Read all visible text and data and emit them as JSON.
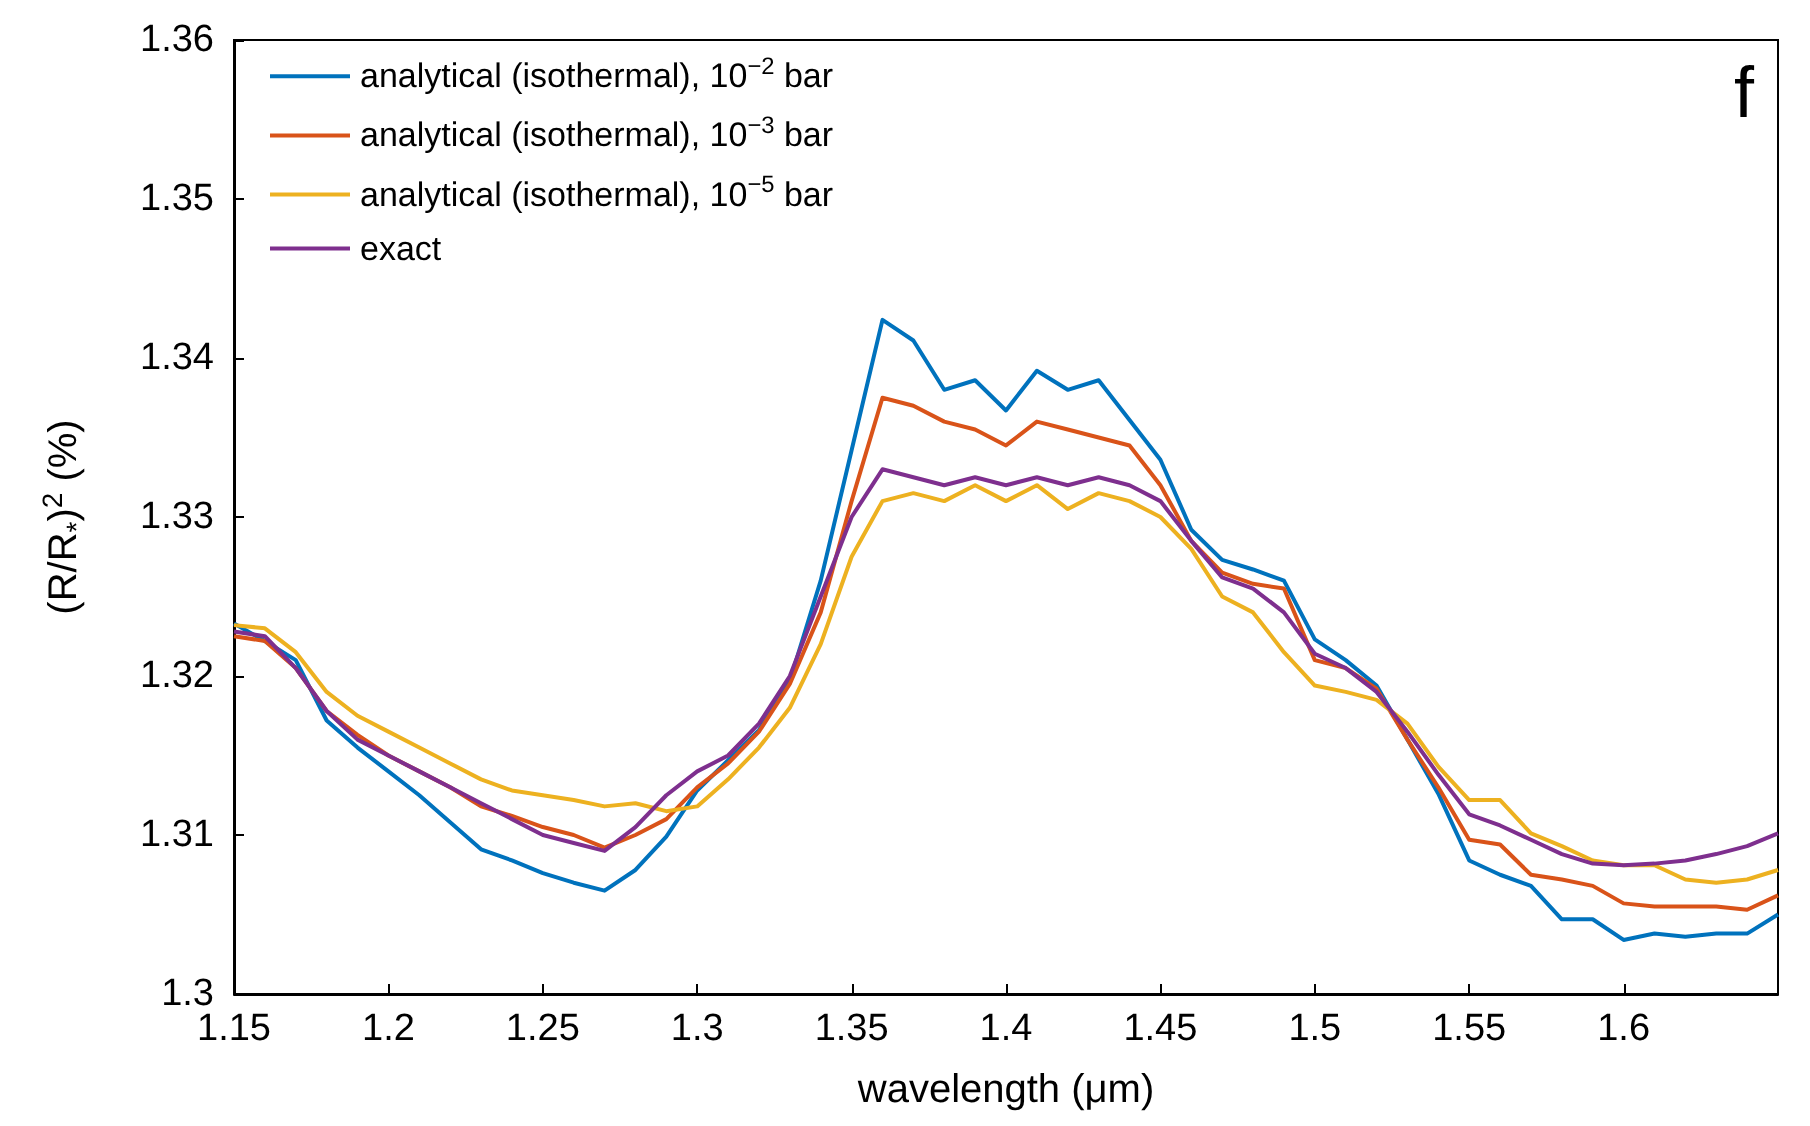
{
  "chart_data": {
    "type": "line",
    "xlabel": "wavelength (μm)",
    "ylabel": "(R/R$_{*}$)$^{2}$ (%)",
    "annotations": [
      "f"
    ],
    "legend": "top left",
    "grid": false,
    "marker": "none",
    "line_style": "solid",
    "x": [
      1.15,
      1.16,
      1.17,
      1.18,
      1.19,
      1.2,
      1.21,
      1.22,
      1.23,
      1.24,
      1.25,
      1.26,
      1.27,
      1.28,
      1.29,
      1.3,
      1.31,
      1.32,
      1.33,
      1.34,
      1.35,
      1.36,
      1.37,
      1.38,
      1.39,
      1.4,
      1.41,
      1.42,
      1.43,
      1.44,
      1.45,
      1.46,
      1.47,
      1.48,
      1.49,
      1.5,
      1.51,
      1.52,
      1.53,
      1.54,
      1.55,
      1.56,
      1.57,
      1.58,
      1.59,
      1.6,
      1.61,
      1.62,
      1.63,
      1.64,
      1.65
    ],
    "xlim": [
      1.15,
      1.65
    ],
    "xticks": [
      1.15,
      1.2,
      1.25,
      1.3,
      1.35,
      1.4,
      1.45,
      1.5,
      1.55,
      1.6
    ],
    "ylim": [
      1.3,
      1.36
    ],
    "yticks": [
      1.3,
      1.31,
      1.32,
      1.33,
      1.34,
      1.35,
      1.36
    ],
    "series": [
      {
        "name": "analytical (isothermal), 10$^{−2}$ bar",
        "color": "#0072bd",
        "values": [
          1.3233,
          1.3222,
          1.321,
          1.3172,
          1.3155,
          1.314,
          1.3125,
          1.3108,
          1.3091,
          1.3084,
          1.3076,
          1.307,
          1.3065,
          1.3078,
          1.3099,
          1.3128,
          1.3147,
          1.3166,
          1.3197,
          1.326,
          1.3342,
          1.3424,
          1.3411,
          1.338,
          1.3386,
          1.3367,
          1.3392,
          1.338,
          1.3386,
          1.3361,
          1.3336,
          1.3292,
          1.3273,
          1.3267,
          1.326,
          1.3223,
          1.321,
          1.3194,
          1.316,
          1.3126,
          1.3084,
          1.3075,
          1.3068,
          1.3047,
          1.3047,
          1.3034,
          1.3038,
          1.3036,
          1.3038,
          1.3038,
          1.305
        ]
      },
      {
        "name": "analytical (isothermal), 10$^{−3}$ bar",
        "color": "#d95319",
        "values": [
          1.3225,
          1.3222,
          1.3205,
          1.3178,
          1.3163,
          1.315,
          1.314,
          1.313,
          1.3118,
          1.3112,
          1.3105,
          1.31,
          1.3092,
          1.31,
          1.311,
          1.313,
          1.3145,
          1.3165,
          1.3195,
          1.324,
          1.331,
          1.3375,
          1.337,
          1.336,
          1.3355,
          1.3345,
          1.336,
          1.3355,
          1.335,
          1.3345,
          1.332,
          1.3285,
          1.3265,
          1.3258,
          1.3255,
          1.321,
          1.3205,
          1.3192,
          1.316,
          1.313,
          1.3097,
          1.3094,
          1.3075,
          1.3072,
          1.3068,
          1.3057,
          1.3055,
          1.3055,
          1.3055,
          1.3053,
          1.3062
        ]
      },
      {
        "name": "analytical (isothermal), 10$^{−5}$ bar",
        "color": "#edb120",
        "values": [
          1.3232,
          1.323,
          1.3215,
          1.319,
          1.3175,
          1.3165,
          1.3155,
          1.3145,
          1.3135,
          1.3128,
          1.3125,
          1.3122,
          1.3118,
          1.312,
          1.3115,
          1.3118,
          1.3135,
          1.3155,
          1.318,
          1.322,
          1.3275,
          1.331,
          1.3315,
          1.331,
          1.332,
          1.331,
          1.332,
          1.3305,
          1.3315,
          1.331,
          1.33,
          1.328,
          1.325,
          1.324,
          1.3215,
          1.3194,
          1.319,
          1.3185,
          1.317,
          1.3143,
          1.3122,
          1.3122,
          1.3101,
          1.3093,
          1.3084,
          1.3081,
          1.3081,
          1.3072,
          1.307,
          1.3072,
          1.3078
        ]
      },
      {
        "name": "exact",
        "color": "#7e2f8e",
        "values": [
          1.3228,
          1.3225,
          1.3205,
          1.3178,
          1.316,
          1.315,
          1.314,
          1.313,
          1.312,
          1.311,
          1.31,
          1.3095,
          1.309,
          1.3105,
          1.3125,
          1.314,
          1.315,
          1.317,
          1.32,
          1.325,
          1.33,
          1.333,
          1.3325,
          1.332,
          1.3325,
          1.332,
          1.3325,
          1.332,
          1.3325,
          1.332,
          1.331,
          1.3285,
          1.3262,
          1.3255,
          1.324,
          1.3214,
          1.3205,
          1.319,
          1.3165,
          1.3138,
          1.3113,
          1.3106,
          1.3097,
          1.3088,
          1.3082,
          1.3081,
          1.3082,
          1.3084,
          1.3088,
          1.3093,
          1.3101
        ]
      }
    ]
  }
}
